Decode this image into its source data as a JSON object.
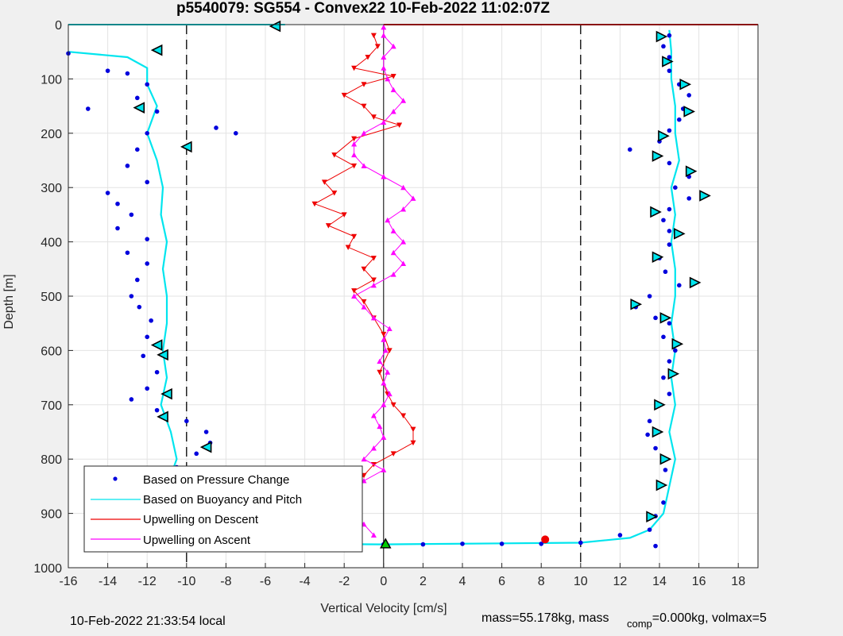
{
  "chart_data": {
    "type": "scatter",
    "title": "p5540079: SG554 - Convex22 10-Feb-2022 11:02:07Z",
    "xlabel": "Vertical Velocity [cm/s]",
    "ylabel": "Depth [m]",
    "xlim": [
      -16,
      19
    ],
    "ylim": [
      0,
      1000
    ],
    "y_reversed": true,
    "grid": true,
    "legend_position": "bottom-left",
    "xticks": [
      -16,
      -14,
      -12,
      -10,
      -8,
      -6,
      -4,
      -2,
      0,
      2,
      4,
      6,
      8,
      10,
      12,
      14,
      16,
      18
    ],
    "yticks": [
      0,
      100,
      200,
      300,
      400,
      500,
      600,
      700,
      800,
      900,
      1000
    ],
    "reference_lines": {
      "dashed_x": [
        -10,
        10
      ],
      "solid_x": [
        0
      ]
    },
    "series": [
      {
        "name": "Based on Pressure Change",
        "marker": "dot",
        "color": "#0000dd",
        "descent": [
          [
            -16,
            53
          ],
          [
            -14,
            85
          ],
          [
            -13,
            90
          ],
          [
            -12,
            110
          ],
          [
            -12.5,
            135
          ],
          [
            -15,
            155
          ],
          [
            -11.5,
            160
          ],
          [
            -12,
            200
          ],
          [
            -8.5,
            190
          ],
          [
            -7.5,
            200
          ],
          [
            -12.5,
            230
          ],
          [
            -13,
            260
          ],
          [
            -12,
            290
          ],
          [
            -14,
            310
          ],
          [
            -13.5,
            330
          ],
          [
            -12.8,
            350
          ],
          [
            -13.5,
            375
          ],
          [
            -12,
            395
          ],
          [
            -13,
            420
          ],
          [
            -12,
            440
          ],
          [
            -12.5,
            470
          ],
          [
            -12.8,
            500
          ],
          [
            -12.4,
            520
          ],
          [
            -11.8,
            545
          ],
          [
            -12,
            575
          ],
          [
            -12.2,
            610
          ],
          [
            -11.5,
            640
          ],
          [
            -12,
            670
          ],
          [
            -12.8,
            690
          ],
          [
            -11.5,
            710
          ],
          [
            -10,
            730
          ],
          [
            -9,
            750
          ],
          [
            -8.8,
            770
          ],
          [
            -9.5,
            790
          ],
          [
            -10.5,
            815
          ]
        ],
        "ascent": [
          [
            13.8,
            960
          ],
          [
            13.5,
            930
          ],
          [
            13.8,
            905
          ],
          [
            14.2,
            880
          ],
          [
            14,
            850
          ],
          [
            14.3,
            820
          ],
          [
            14.2,
            800
          ],
          [
            13.8,
            780
          ],
          [
            13.4,
            755
          ],
          [
            13.5,
            730
          ],
          [
            14,
            700
          ],
          [
            14.5,
            680
          ],
          [
            14.2,
            650
          ],
          [
            14.5,
            620
          ],
          [
            14.8,
            600
          ],
          [
            14.2,
            575
          ],
          [
            14.5,
            550
          ],
          [
            13.8,
            540
          ],
          [
            12.8,
            520
          ],
          [
            13.5,
            500
          ],
          [
            15,
            480
          ],
          [
            14.3,
            455
          ],
          [
            14,
            430
          ],
          [
            14.5,
            405
          ],
          [
            14.5,
            380
          ],
          [
            14.2,
            360
          ],
          [
            14.5,
            340
          ],
          [
            15.5,
            320
          ],
          [
            14.8,
            300
          ],
          [
            15.5,
            280
          ],
          [
            14.5,
            255
          ],
          [
            12.5,
            230
          ],
          [
            14,
            215
          ],
          [
            14.5,
            195
          ],
          [
            15,
            175
          ],
          [
            15.2,
            155
          ],
          [
            15.5,
            130
          ],
          [
            15,
            110
          ],
          [
            14.5,
            85
          ],
          [
            14.5,
            60
          ],
          [
            14.2,
            40
          ],
          [
            14.5,
            20
          ]
        ],
        "bottom_turn": [
          [
            -10,
            955
          ],
          [
            -6,
            955
          ],
          [
            -2,
            956
          ],
          [
            0,
            957
          ],
          [
            2,
            957
          ],
          [
            4,
            956
          ],
          [
            6,
            956
          ],
          [
            8,
            956
          ],
          [
            10,
            954
          ],
          [
            12,
            940
          ]
        ]
      },
      {
        "name": "Based on Buoyancy and Pitch",
        "marker": "line",
        "color": "#00e5ee",
        "descent": [
          [
            -16,
            50
          ],
          [
            -13,
            60
          ],
          [
            -12,
            80
          ],
          [
            -12,
            110
          ],
          [
            -11.5,
            150
          ],
          [
            -12,
            200
          ],
          [
            -11.5,
            250
          ],
          [
            -11.2,
            300
          ],
          [
            -11.3,
            350
          ],
          [
            -11,
            400
          ],
          [
            -11.2,
            450
          ],
          [
            -11,
            500
          ],
          [
            -11,
            550
          ],
          [
            -11.2,
            600
          ],
          [
            -11,
            650
          ],
          [
            -11.3,
            700
          ],
          [
            -10.8,
            750
          ],
          [
            -10.5,
            800
          ],
          [
            -11,
            850
          ],
          [
            -11,
            900
          ],
          [
            -10.8,
            950
          ]
        ],
        "ascent": [
          [
            -10,
            955
          ],
          [
            0,
            957
          ],
          [
            10,
            954
          ],
          [
            12.5,
            945
          ],
          [
            13.5,
            930
          ],
          [
            14.2,
            900
          ],
          [
            14.5,
            850
          ],
          [
            14.8,
            800
          ],
          [
            14.5,
            750
          ],
          [
            14.8,
            700
          ],
          [
            14.6,
            650
          ],
          [
            14.8,
            600
          ],
          [
            14.6,
            550
          ],
          [
            14.8,
            500
          ],
          [
            14.8,
            450
          ],
          [
            14.6,
            400
          ],
          [
            14.8,
            350
          ],
          [
            14.6,
            300
          ],
          [
            15,
            250
          ],
          [
            14.8,
            200
          ],
          [
            14.8,
            150
          ],
          [
            14.6,
            100
          ],
          [
            14.6,
            50
          ],
          [
            14.5,
            10
          ]
        ]
      },
      {
        "name": "Upwelling on Descent",
        "marker": "triangle-down",
        "color": "#ee0000",
        "points": [
          [
            -0.5,
            20
          ],
          [
            -0.3,
            40
          ],
          [
            -0.8,
            60
          ],
          [
            -1.5,
            80
          ],
          [
            0.5,
            95
          ],
          [
            -1,
            110
          ],
          [
            -2,
            130
          ],
          [
            -1,
            150
          ],
          [
            -0.5,
            170
          ],
          [
            0.8,
            185
          ],
          [
            -1.5,
            210
          ],
          [
            -2.5,
            240
          ],
          [
            -1.5,
            260
          ],
          [
            -3,
            290
          ],
          [
            -2.5,
            310
          ],
          [
            -3.5,
            330
          ],
          [
            -2,
            350
          ],
          [
            -2.8,
            370
          ],
          [
            -1.5,
            390
          ],
          [
            -1.8,
            410
          ],
          [
            -0.5,
            430
          ],
          [
            -1,
            450
          ],
          [
            -0.5,
            470
          ],
          [
            -1.5,
            490
          ],
          [
            -1,
            510
          ],
          [
            -0.5,
            540
          ],
          [
            0,
            570
          ],
          [
            0.3,
            600
          ],
          [
            -0.2,
            640
          ],
          [
            0.2,
            680
          ],
          [
            0.5,
            700
          ],
          [
            1,
            720
          ],
          [
            1.5,
            745
          ],
          [
            1.5,
            770
          ],
          [
            0.5,
            790
          ],
          [
            -0.5,
            810
          ],
          [
            -1,
            830
          ],
          [
            -1.5,
            850
          ],
          [
            -2,
            870
          ],
          [
            -2.5,
            890
          ],
          [
            -2,
            910
          ],
          [
            -2.5,
            935
          ],
          [
            -1.5,
            950
          ]
        ]
      },
      {
        "name": "Upwelling on Ascent",
        "marker": "triangle-up",
        "color": "#ff00ff",
        "points": [
          [
            -0.5,
            940
          ],
          [
            -1,
            920
          ],
          [
            -1.5,
            900
          ],
          [
            -1.5,
            880
          ],
          [
            -1.8,
            860
          ],
          [
            -1,
            840
          ],
          [
            0,
            820
          ],
          [
            -1,
            800
          ],
          [
            -0.5,
            780
          ],
          [
            0,
            760
          ],
          [
            -0.2,
            740
          ],
          [
            -0.5,
            720
          ],
          [
            0,
            700
          ],
          [
            0.3,
            680
          ],
          [
            0,
            660
          ],
          [
            0.2,
            640
          ],
          [
            -0.2,
            620
          ],
          [
            0.1,
            600
          ],
          [
            0,
            580
          ],
          [
            0.3,
            560
          ],
          [
            -0.5,
            540
          ],
          [
            -1,
            520
          ],
          [
            -1.5,
            500
          ],
          [
            -0.5,
            480
          ],
          [
            0.5,
            460
          ],
          [
            1,
            440
          ],
          [
            0.5,
            420
          ],
          [
            1,
            400
          ],
          [
            0.5,
            380
          ],
          [
            0.2,
            360
          ],
          [
            1,
            340
          ],
          [
            1.5,
            320
          ],
          [
            1,
            300
          ],
          [
            0,
            280
          ],
          [
            -1,
            260
          ],
          [
            -1.5,
            240
          ],
          [
            -1.5,
            220
          ],
          [
            -1,
            200
          ],
          [
            0,
            180
          ],
          [
            0.5,
            160
          ],
          [
            1,
            140
          ],
          [
            0.5,
            120
          ],
          [
            0.2,
            100
          ],
          [
            0,
            80
          ],
          [
            0,
            60
          ],
          [
            0.5,
            40
          ],
          [
            0,
            20
          ],
          [
            0,
            5
          ]
        ]
      }
    ],
    "markers": {
      "descent_triangles": [
        [
          -5.5,
          3
        ],
        [
          -11.5,
          47
        ],
        [
          -12.4,
          153
        ],
        [
          -10,
          225
        ],
        [
          -11.5,
          590
        ],
        [
          -11.2,
          608
        ],
        [
          -11,
          680
        ],
        [
          -11.2,
          722
        ],
        [
          -9,
          778
        ]
      ],
      "ascent_triangles": [
        [
          14.1,
          22
        ],
        [
          14.4,
          68
        ],
        [
          15.3,
          110
        ],
        [
          15.5,
          160
        ],
        [
          14.2,
          205
        ],
        [
          13.9,
          242
        ],
        [
          15.6,
          270
        ],
        [
          16.3,
          315
        ],
        [
          13.8,
          345
        ],
        [
          15,
          385
        ],
        [
          13.9,
          428
        ],
        [
          15.8,
          475
        ],
        [
          12.8,
          515
        ],
        [
          14.3,
          540
        ],
        [
          14.9,
          588
        ],
        [
          14.7,
          643
        ],
        [
          14,
          700
        ],
        [
          13.9,
          750
        ],
        [
          14.3,
          800
        ],
        [
          14.1,
          848
        ],
        [
          13.6,
          906
        ]
      ],
      "start_point": [
        -12.2,
        950
      ],
      "end_point": [
        0.1,
        956
      ],
      "red_dot": [
        8.2,
        948
      ]
    },
    "surface_segments": [
      {
        "color": "#00e5ee",
        "from": [
          -16,
          0
        ],
        "to": [
          -5,
          0
        ]
      },
      {
        "color": "#ee0000",
        "from": [
          0,
          0
        ],
        "to": [
          19,
          0
        ]
      }
    ]
  },
  "legend": {
    "entries": [
      "Based on Pressure Change",
      "Based on Buoyancy and Pitch",
      "Upwelling on Descent",
      "Upwelling on Ascent"
    ]
  },
  "footer": {
    "local_time": "10-Feb-2022 21:33:54 local",
    "mass_text": "mass=55.178kg, mass",
    "comp_sub": "comp",
    "comp_rest": "=0.000kg, volmax=5"
  }
}
